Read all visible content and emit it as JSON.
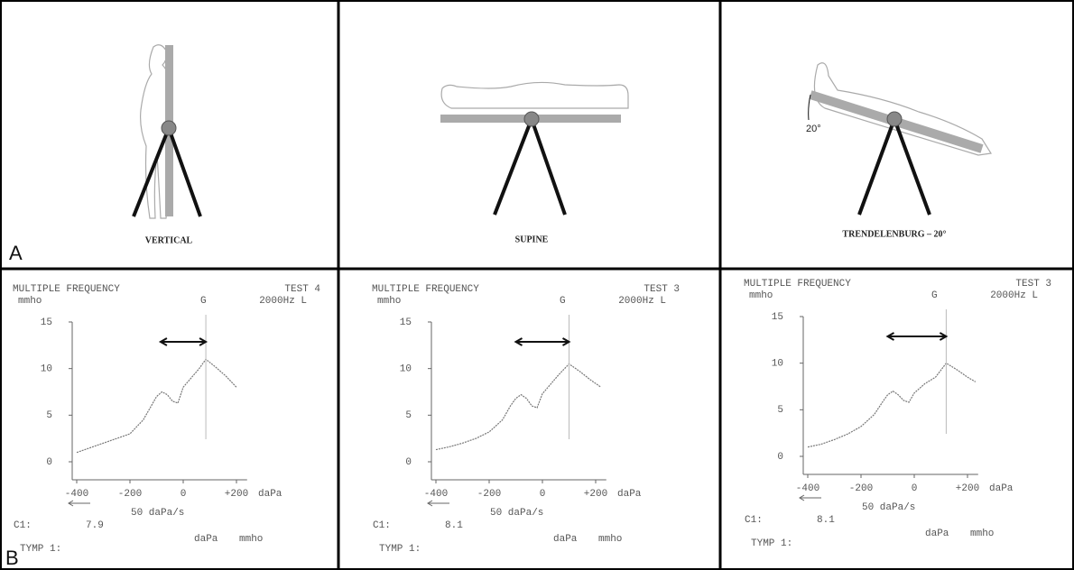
{
  "figure_labels": {
    "a": "A",
    "b": "B"
  },
  "positions": [
    {
      "label": "VERTICAL"
    },
    {
      "label": "SUPINE"
    },
    {
      "label": "TRENDELENBURG – 20°",
      "angle_label": "20°"
    }
  ],
  "chart_data": [
    {
      "type": "line",
      "title": "MULTIPLE FREQUENCY",
      "test": "TEST 4",
      "mode": "G",
      "frequency": "2000Hz L",
      "y_label": "mmho",
      "x_label": "daPa",
      "rate": "50 daPa/s",
      "c1_label": "C1:",
      "c1_value": 7.9,
      "tymp": "TYMP 1:",
      "unit_pressure": "daPa",
      "unit_admittance": "mmho",
      "color": "#777777",
      "x": [
        -400,
        -350,
        -300,
        -250,
        -200,
        -150,
        -120,
        -100,
        -80,
        -60,
        -40,
        -20,
        0,
        30,
        60,
        85,
        120,
        160,
        200
      ],
      "values": [
        1,
        1.5,
        2,
        2.5,
        3,
        4.5,
        6,
        7,
        7.5,
        7.2,
        6.5,
        6.3,
        8,
        9,
        10,
        11,
        10.2,
        9.2,
        8
      ],
      "peak_x": 85,
      "arrow_x": [
        -85,
        85
      ],
      "xlim": [
        -400,
        240
      ],
      "ylim": [
        0,
        15
      ],
      "xticks": [
        -400,
        -200,
        0,
        {
          "value": 200,
          "label": "+200"
        }
      ],
      "yticks": [
        0,
        5,
        10,
        15
      ]
    },
    {
      "type": "line",
      "title": "MULTIPLE FREQUENCY",
      "test": "TEST 3",
      "mode": "G",
      "frequency": "2000Hz L",
      "y_label": "mmho",
      "x_label": "daPa",
      "rate": "50 daPa/s",
      "c1_label": "C1:",
      "c1_value": 8.1,
      "tymp": "TYMP 1:",
      "unit_pressure": "daPa",
      "unit_admittance": "mmho",
      "color": "#777777",
      "x": [
        -400,
        -350,
        -300,
        -250,
        -200,
        -150,
        -120,
        -100,
        -80,
        -60,
        -40,
        -20,
        0,
        30,
        60,
        100,
        140,
        180,
        220
      ],
      "values": [
        1.3,
        1.6,
        2,
        2.5,
        3.2,
        4.5,
        6,
        6.8,
        7.2,
        6.8,
        6,
        5.8,
        7.3,
        8.3,
        9.3,
        10.5,
        9.7,
        8.8,
        8
      ],
      "peak_x": 100,
      "arrow_x": [
        -100,
        100
      ],
      "xlim": [
        -400,
        240
      ],
      "ylim": [
        0,
        15
      ],
      "xticks": [
        -400,
        -200,
        0,
        {
          "value": 200,
          "label": "+200"
        }
      ],
      "yticks": [
        0,
        5,
        10,
        15
      ]
    },
    {
      "type": "line",
      "title": "MULTIPLE FREQUENCY",
      "test": "TEST 3",
      "mode": "G",
      "frequency": "2000Hz L",
      "y_label": "mmho",
      "x_label": "daPa",
      "rate": "50 daPa/s",
      "c1_label": "C1:",
      "c1_value": 8.1,
      "tymp": "TYMP 1:",
      "unit_pressure": "daPa",
      "unit_admittance": "mmho",
      "color": "#777777",
      "x": [
        -400,
        -350,
        -300,
        -250,
        -200,
        -150,
        -120,
        -100,
        -80,
        -60,
        -40,
        -20,
        0,
        40,
        80,
        120,
        160,
        200,
        230
      ],
      "values": [
        1,
        1.3,
        1.8,
        2.4,
        3.2,
        4.5,
        5.8,
        6.6,
        7,
        6.6,
        6,
        5.8,
        6.8,
        7.8,
        8.5,
        10,
        9.3,
        8.5,
        8
      ],
      "peak_x": 120,
      "arrow_x": [
        -100,
        120
      ],
      "xlim": [
        -400,
        240
      ],
      "ylim": [
        0,
        15
      ],
      "xticks": [
        -400,
        -200,
        0,
        {
          "value": 200,
          "label": "+200"
        }
      ],
      "yticks": [
        0,
        5,
        10,
        15
      ]
    }
  ]
}
